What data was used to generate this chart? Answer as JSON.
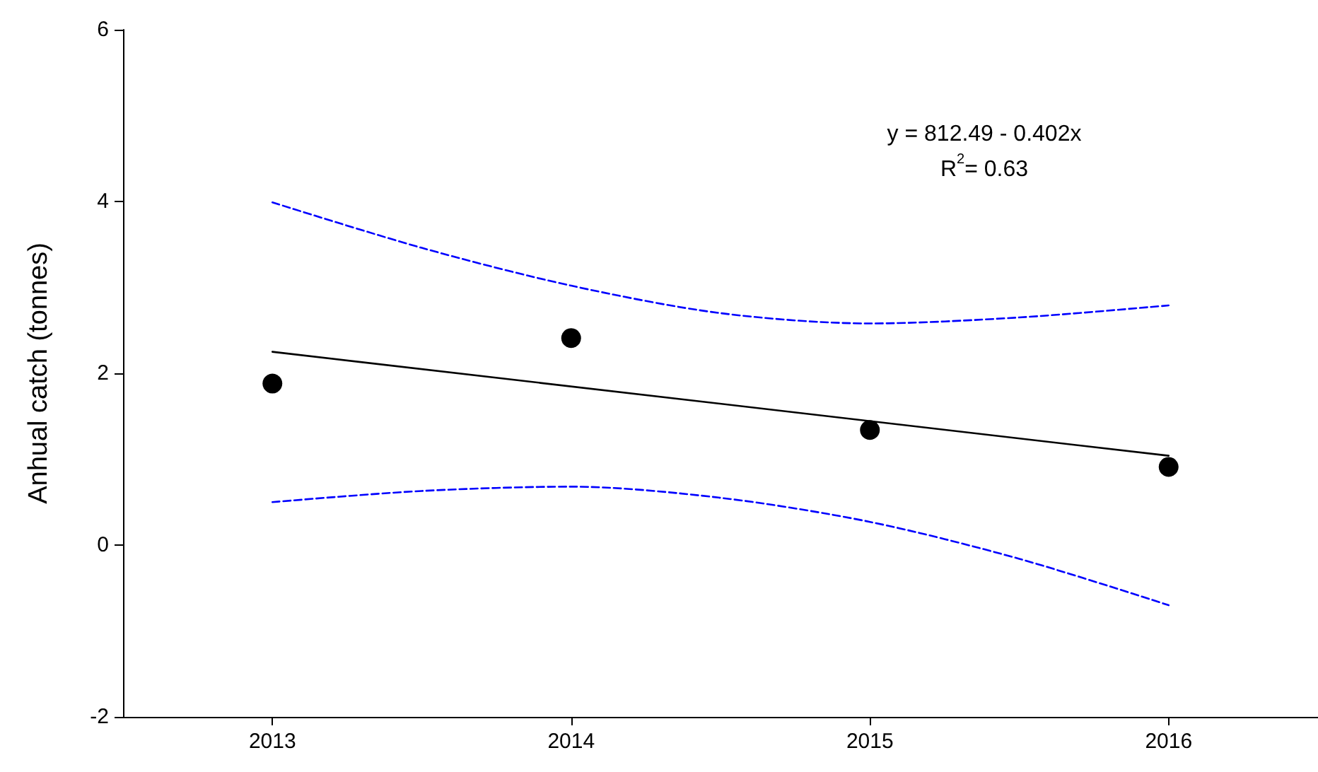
{
  "chart_data": {
    "type": "scatter",
    "ylabel": "Anhual catch (tonnes)",
    "xlim": [
      2012.5,
      2016.5
    ],
    "xticks": [
      2013,
      2014,
      2015,
      2016
    ],
    "ylim": [
      -2,
      6
    ],
    "yticks": [
      -2,
      0,
      2,
      4,
      6
    ],
    "grid": false,
    "series": [
      {
        "color": "#000000",
        "marker": "circle",
        "x": [
          2013,
          2014,
          2015,
          2016
        ],
        "values": [
          1.88,
          2.41,
          1.34,
          0.91
        ]
      },
      {
        "type": "line",
        "color": "#000000",
        "marker": "none",
        "line_style": "solid",
        "x": [
          2013,
          2016
        ],
        "values": [
          2.25,
          1.04
        ]
      },
      {
        "type": "line",
        "color": "#0000ff",
        "marker": "none",
        "line_style": "dashed",
        "x": [
          2013,
          2013.5,
          2014,
          2014.5,
          2015,
          2015.5,
          2016
        ],
        "values": [
          3.99,
          3.46,
          3.02,
          2.7,
          2.58,
          2.65,
          2.79
        ]
      },
      {
        "type": "line",
        "color": "#0000ff",
        "marker": "none",
        "line_style": "dashed",
        "x": [
          2013,
          2013.5,
          2014,
          2014.5,
          2015,
          2015.5,
          2016
        ],
        "values": [
          0.5,
          0.63,
          0.68,
          0.55,
          0.27,
          -0.16,
          -0.7
        ]
      }
    ],
    "annotations": [
      "y = 812.49 - 0.402x",
      "R$^{2}$= 0.63"
    ]
  }
}
